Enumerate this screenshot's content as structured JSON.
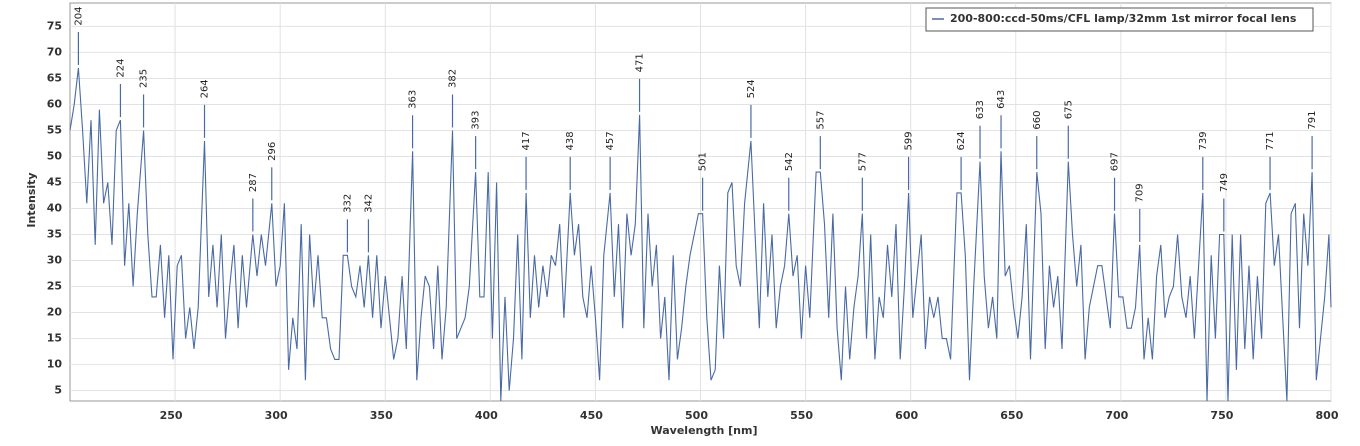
{
  "chart_data": {
    "type": "line",
    "xlabel": "Wavelength [nm]",
    "ylabel": "Intensity",
    "xlim": [
      200,
      800
    ],
    "ylim": [
      3,
      79.5
    ],
    "xticks": [
      250,
      300,
      350,
      400,
      450,
      500,
      550,
      600,
      650,
      700,
      750,
      800
    ],
    "yticks": [
      5,
      10,
      15,
      20,
      25,
      30,
      35,
      40,
      45,
      50,
      55,
      60,
      65,
      70,
      75
    ],
    "grid": true,
    "legend": "top-right",
    "x": [
      200,
      202,
      204,
      206,
      208,
      210,
      212,
      214,
      216,
      218,
      220,
      222,
      224,
      226,
      228,
      230,
      232,
      235,
      237,
      239,
      241,
      243,
      245,
      247,
      249,
      251,
      253,
      255,
      257,
      259,
      261,
      264,
      266,
      268,
      270,
      272,
      274,
      276,
      278,
      280,
      282,
      284,
      287,
      289,
      291,
      293,
      296,
      298,
      300,
      302,
      304,
      306,
      308,
      310,
      312,
      314,
      316,
      318,
      320,
      322,
      324,
      326,
      328,
      330,
      332,
      334,
      336,
      338,
      340,
      342,
      344,
      346,
      348,
      350,
      352,
      354,
      356,
      358,
      360,
      363,
      365,
      367,
      369,
      371,
      373,
      375,
      377,
      379,
      382,
      384,
      386,
      388,
      390,
      393,
      395,
      397,
      399,
      401,
      403,
      405,
      407,
      409,
      411,
      413,
      415,
      417,
      419,
      421,
      423,
      425,
      427,
      429,
      431,
      433,
      435,
      438,
      440,
      442,
      444,
      446,
      448,
      450,
      452,
      454,
      457,
      459,
      461,
      463,
      465,
      467,
      469,
      471,
      473,
      475,
      477,
      479,
      481,
      483,
      485,
      487,
      489,
      491,
      493,
      495,
      497,
      499,
      501,
      503,
      505,
      507,
      509,
      511,
      513,
      515,
      517,
      519,
      521,
      524,
      526,
      528,
      530,
      532,
      534,
      536,
      538,
      540,
      542,
      544,
      546,
      548,
      550,
      552,
      555,
      557,
      559,
      561,
      563,
      565,
      567,
      569,
      571,
      573,
      575,
      577,
      579,
      581,
      583,
      585,
      587,
      589,
      591,
      593,
      595,
      597,
      599,
      601,
      603,
      605,
      607,
      609,
      611,
      613,
      615,
      617,
      619,
      622,
      624,
      626,
      628,
      630,
      633,
      635,
      637,
      639,
      641,
      643,
      645,
      647,
      649,
      651,
      653,
      655,
      657,
      660,
      662,
      664,
      666,
      668,
      670,
      672,
      675,
      677,
      679,
      681,
      683,
      685,
      687,
      689,
      691,
      693,
      695,
      697,
      699,
      701,
      703,
      705,
      707,
      709,
      711,
      713,
      715,
      717,
      719,
      721,
      723,
      725,
      727,
      729,
      731,
      733,
      735,
      737,
      739,
      741,
      743,
      745,
      747,
      749,
      751,
      753,
      755,
      757,
      759,
      761,
      763,
      765,
      767,
      769,
      771,
      773,
      775,
      777,
      779,
      781,
      783,
      785,
      787,
      789,
      791,
      793,
      795,
      797,
      799,
      800
    ],
    "series": [
      {
        "name": "200-800:ccd-50ms/CFL lamp/32mm 1st mirror focal lens",
        "color": "#4a6aa5",
        "values": [
          55,
          60,
          67,
          55,
          41,
          57,
          33,
          59,
          41,
          45,
          33,
          55,
          57,
          29,
          41,
          25,
          39,
          55,
          35,
          23,
          23,
          33,
          19,
          31,
          11,
          29,
          31,
          15,
          21,
          13,
          21,
          53,
          23,
          33,
          21,
          35,
          15,
          25,
          33,
          17,
          31,
          21,
          35,
          27,
          35,
          29,
          41,
          25,
          29,
          41,
          9,
          19,
          13,
          37,
          7,
          35,
          21,
          31,
          19,
          19,
          13,
          11,
          11,
          31,
          31,
          25,
          23,
          29,
          21,
          31,
          19,
          31,
          17,
          27,
          19,
          11,
          15,
          27,
          13,
          51,
          7,
          19,
          27,
          25,
          13,
          29,
          11,
          21,
          55,
          15,
          17,
          19,
          25,
          47,
          23,
          23,
          47,
          15,
          45,
          3,
          23,
          5,
          15,
          35,
          11,
          43,
          19,
          31,
          21,
          29,
          23,
          31,
          29,
          37,
          19,
          43,
          31,
          37,
          23,
          19,
          29,
          19,
          7,
          31,
          43,
          23,
          37,
          17,
          39,
          31,
          37,
          58,
          17,
          39,
          25,
          33,
          15,
          23,
          7,
          31,
          11,
          17,
          25,
          31,
          35,
          39,
          39,
          19,
          7,
          9,
          29,
          15,
          43,
          45,
          29,
          25,
          41,
          53,
          35,
          17,
          41,
          23,
          35,
          17,
          25,
          29,
          39,
          27,
          31,
          15,
          29,
          19,
          47,
          47,
          37,
          19,
          39,
          17,
          7,
          25,
          11,
          21,
          27,
          39,
          15,
          35,
          11,
          23,
          19,
          33,
          23,
          37,
          11,
          25,
          43,
          19,
          27,
          35,
          13,
          23,
          19,
          23,
          15,
          15,
          11,
          43,
          43,
          31,
          7,
          25,
          49,
          27,
          17,
          23,
          15,
          51,
          27,
          29,
          21,
          15,
          23,
          37,
          11,
          47,
          39,
          13,
          29,
          21,
          27,
          13,
          49,
          35,
          25,
          33,
          11,
          21,
          25,
          29,
          29,
          23,
          17,
          39,
          23,
          23,
          17,
          17,
          21,
          33,
          11,
          19,
          11,
          27,
          33,
          19,
          23,
          25,
          35,
          23,
          19,
          27,
          15,
          29,
          43,
          3,
          31,
          15,
          35,
          35,
          3,
          35,
          9,
          35,
          13,
          29,
          11,
          27,
          15,
          41,
          43,
          29,
          35,
          19,
          3,
          39,
          41,
          17,
          39,
          29,
          47,
          7,
          15,
          23,
          35,
          21
        ]
      }
    ],
    "annotations": [
      {
        "x": 204,
        "y": 67
      },
      {
        "x": 224,
        "y": 57
      },
      {
        "x": 235,
        "y": 55
      },
      {
        "x": 264,
        "y": 53
      },
      {
        "x": 287,
        "y": 35
      },
      {
        "x": 296,
        "y": 41
      },
      {
        "x": 332,
        "y": 31
      },
      {
        "x": 342,
        "y": 31
      },
      {
        "x": 363,
        "y": 51
      },
      {
        "x": 382,
        "y": 55
      },
      {
        "x": 393,
        "y": 47
      },
      {
        "x": 417,
        "y": 43
      },
      {
        "x": 438,
        "y": 43
      },
      {
        "x": 457,
        "y": 43
      },
      {
        "x": 471,
        "y": 58
      },
      {
        "x": 501,
        "y": 39
      },
      {
        "x": 524,
        "y": 53
      },
      {
        "x": 542,
        "y": 39
      },
      {
        "x": 557,
        "y": 47
      },
      {
        "x": 577,
        "y": 39
      },
      {
        "x": 599,
        "y": 43
      },
      {
        "x": 624,
        "y": 43
      },
      {
        "x": 633,
        "y": 49
      },
      {
        "x": 643,
        "y": 51
      },
      {
        "x": 660,
        "y": 47
      },
      {
        "x": 675,
        "y": 49
      },
      {
        "x": 697,
        "y": 39
      },
      {
        "x": 709,
        "y": 33
      },
      {
        "x": 739,
        "y": 43
      },
      {
        "x": 749,
        "y": 35
      },
      {
        "x": 771,
        "y": 43
      },
      {
        "x": 791,
        "y": 47
      }
    ]
  }
}
